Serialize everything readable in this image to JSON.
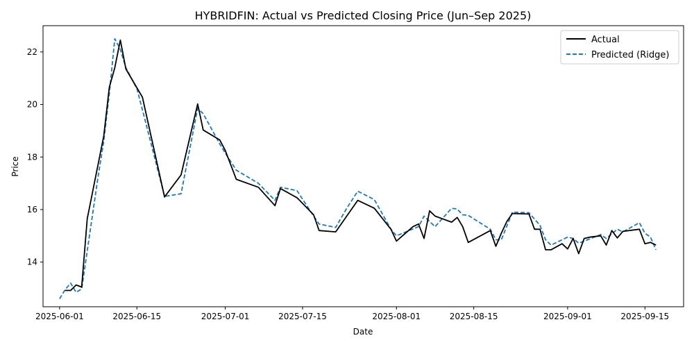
{
  "chart_data": {
    "type": "line",
    "title": "HYBRIDFIN: Actual vs Predicted Closing Price (Jun–Sep 2025)",
    "xlabel": "Date",
    "ylabel": "Price",
    "xlim": [
      "2025-05-29",
      "2025-09-22"
    ],
    "ylim": [
      12.3,
      23.0
    ],
    "x_ticks": [
      "2025-06-01",
      "2025-06-15",
      "2025-07-01",
      "2025-07-15",
      "2025-08-01",
      "2025-08-15",
      "2025-09-01",
      "2025-09-15"
    ],
    "y_ticks": [
      14,
      16,
      18,
      20,
      22
    ],
    "grid": false,
    "legend": "top-right",
    "colors": {
      "actual": "#000000",
      "predicted": "#1f77b4"
    },
    "series": [
      {
        "name": "Actual",
        "style": "solid",
        "x": [
          "2025-06-02",
          "2025-06-03",
          "2025-06-04",
          "2025-06-05",
          "2025-06-06",
          "2025-06-09",
          "2025-06-10",
          "2025-06-11",
          "2025-06-12",
          "2025-06-13",
          "2025-06-16",
          "2025-06-20",
          "2025-06-23",
          "2025-06-26",
          "2025-06-27",
          "2025-06-30",
          "2025-07-01",
          "2025-07-03",
          "2025-07-07",
          "2025-07-10",
          "2025-07-11",
          "2025-07-14",
          "2025-07-17",
          "2025-07-18",
          "2025-07-21",
          "2025-07-25",
          "2025-07-28",
          "2025-07-31",
          "2025-08-01",
          "2025-08-04",
          "2025-08-05",
          "2025-08-06",
          "2025-08-07",
          "2025-08-08",
          "2025-08-11",
          "2025-08-12",
          "2025-08-13",
          "2025-08-14",
          "2025-08-18",
          "2025-08-19",
          "2025-08-20",
          "2025-08-21",
          "2025-08-22",
          "2025-08-25",
          "2025-08-26",
          "2025-08-27",
          "2025-08-28",
          "2025-08-29",
          "2025-08-31",
          "2025-09-01",
          "2025-09-02",
          "2025-09-03",
          "2025-09-04",
          "2025-09-05",
          "2025-09-07",
          "2025-09-08",
          "2025-09-09",
          "2025-09-10",
          "2025-09-11",
          "2025-09-14",
          "2025-09-15",
          "2025-09-16",
          "2025-09-17"
        ],
        "values": [
          12.92,
          12.92,
          13.13,
          13.05,
          15.65,
          18.8,
          20.65,
          21.4,
          22.45,
          21.35,
          20.28,
          16.48,
          17.32,
          20.02,
          19.03,
          18.65,
          18.25,
          17.15,
          16.85,
          16.15,
          16.8,
          16.45,
          15.8,
          15.2,
          15.15,
          16.35,
          16.05,
          15.25,
          14.8,
          15.35,
          15.45,
          14.9,
          15.95,
          15.75,
          15.52,
          15.7,
          15.35,
          14.75,
          15.2,
          14.6,
          15.1,
          15.55,
          15.85,
          15.83,
          15.25,
          15.25,
          14.47,
          14.47,
          14.7,
          14.5,
          14.9,
          14.32,
          14.9,
          14.95,
          15.0,
          14.65,
          15.2,
          14.92,
          15.17,
          15.25,
          14.7,
          14.75,
          14.65
        ]
      },
      {
        "name": "Predicted (Ridge)",
        "style": "dashed",
        "x": [
          "2025-06-01",
          "2025-06-02",
          "2025-06-03",
          "2025-06-04",
          "2025-06-05",
          "2025-06-08",
          "2025-06-09",
          "2025-06-10",
          "2025-06-11",
          "2025-06-12",
          "2025-06-13",
          "2025-06-15",
          "2025-06-16",
          "2025-06-20",
          "2025-06-23",
          "2025-06-26",
          "2025-06-27",
          "2025-06-30",
          "2025-07-01",
          "2025-07-03",
          "2025-07-07",
          "2025-07-10",
          "2025-07-11",
          "2025-07-14",
          "2025-07-17",
          "2025-07-18",
          "2025-07-21",
          "2025-07-23",
          "2025-07-25",
          "2025-07-28",
          "2025-07-31",
          "2025-08-01",
          "2025-08-05",
          "2025-08-06",
          "2025-08-08",
          "2025-08-11",
          "2025-08-12",
          "2025-08-13",
          "2025-08-14",
          "2025-08-18",
          "2025-08-19",
          "2025-08-20",
          "2025-08-22",
          "2025-08-25",
          "2025-08-27",
          "2025-08-28",
          "2025-08-29",
          "2025-09-01",
          "2025-09-02",
          "2025-09-03",
          "2025-09-04",
          "2025-09-07",
          "2025-09-08",
          "2025-09-10",
          "2025-09-11",
          "2025-09-14",
          "2025-09-15",
          "2025-09-16",
          "2025-09-17"
        ],
        "values": [
          12.6,
          12.95,
          13.2,
          12.85,
          12.98,
          17.3,
          18.6,
          20.4,
          22.5,
          22.1,
          21.4,
          20.6,
          19.8,
          16.5,
          16.6,
          19.85,
          19.65,
          18.5,
          18.15,
          17.5,
          17.0,
          16.35,
          16.85,
          16.72,
          15.75,
          15.45,
          15.32,
          16.05,
          16.7,
          16.38,
          15.25,
          15.0,
          15.35,
          15.75,
          15.35,
          16.05,
          16.02,
          15.8,
          15.78,
          15.25,
          14.85,
          14.85,
          15.9,
          15.88,
          15.4,
          14.85,
          14.65,
          14.95,
          14.9,
          14.72,
          14.8,
          15.05,
          14.9,
          15.25,
          15.15,
          15.5,
          15.1,
          14.95,
          14.47
        ]
      }
    ]
  }
}
